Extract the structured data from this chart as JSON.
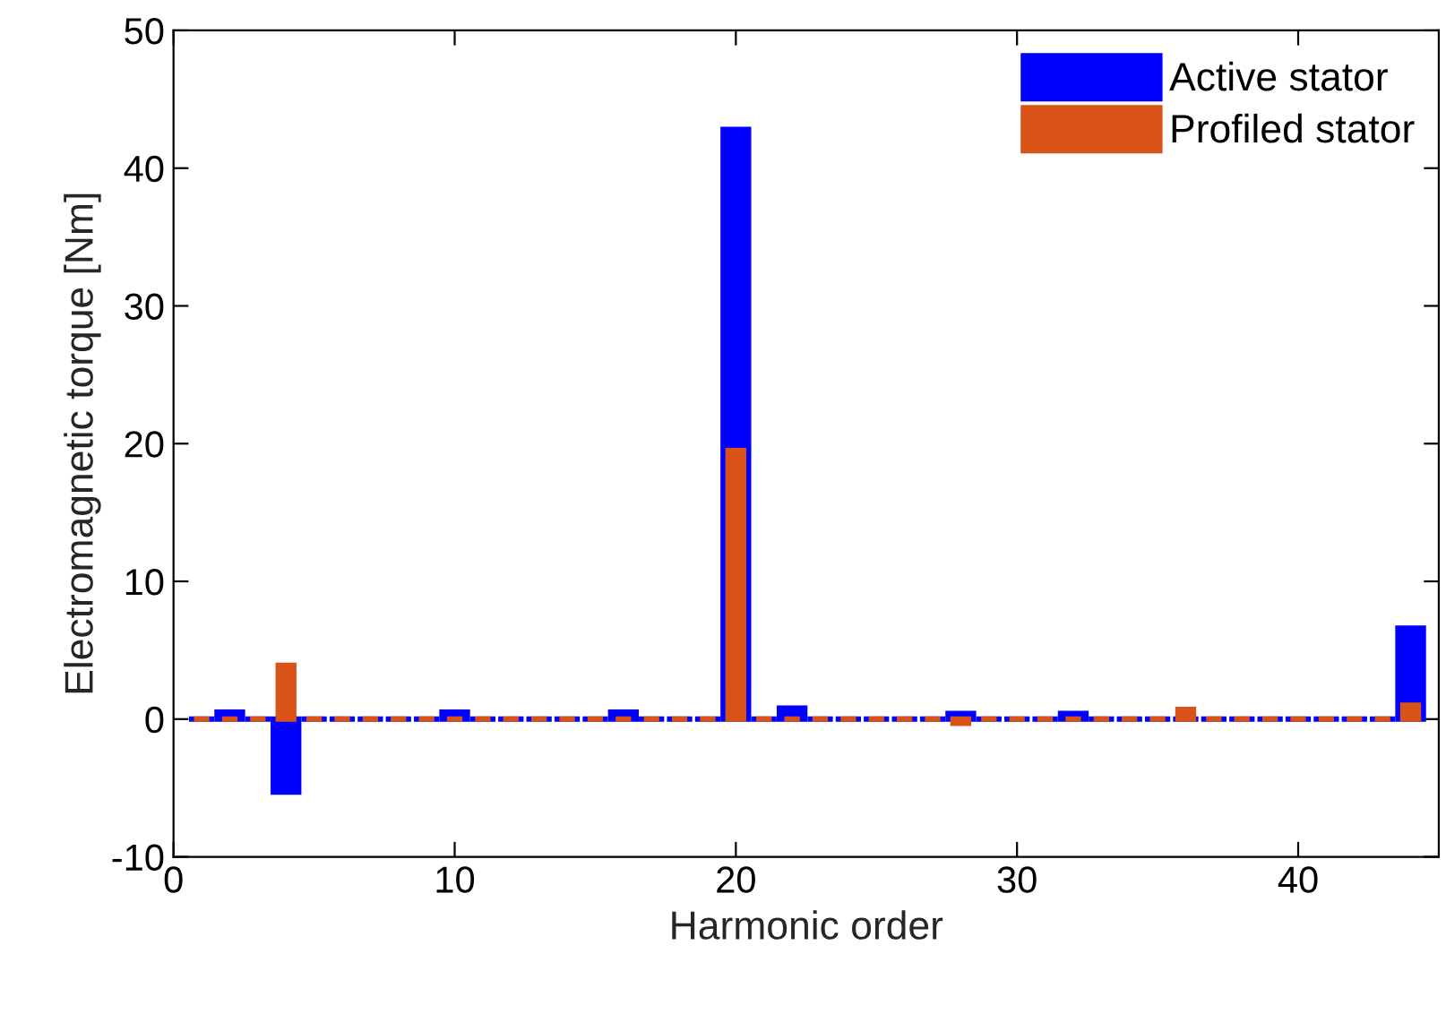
{
  "chart_data": {
    "type": "bar",
    "xlabel": "Harmonic order",
    "ylabel": "Electromagnetic torque [Nm]",
    "x": [
      1,
      2,
      3,
      4,
      5,
      6,
      7,
      8,
      9,
      10,
      11,
      12,
      13,
      14,
      15,
      16,
      17,
      18,
      19,
      20,
      21,
      22,
      23,
      24,
      25,
      26,
      27,
      28,
      29,
      30,
      31,
      32,
      33,
      34,
      35,
      36,
      37,
      38,
      39,
      40,
      41,
      42,
      43,
      44
    ],
    "series": [
      {
        "name": "Active stator",
        "color": "#0000ff",
        "values": [
          0,
          0.5,
          0,
          -5.3,
          0,
          0,
          0,
          0,
          0,
          0.5,
          0,
          0,
          0,
          0,
          0,
          0.5,
          0,
          0,
          0,
          42.8,
          0,
          0.8,
          0,
          0,
          0,
          0,
          0,
          0.4,
          0,
          0,
          0,
          0.4,
          0,
          0,
          0,
          0,
          0,
          0,
          0,
          0,
          0,
          0,
          0,
          6.6
        ]
      },
      {
        "name": "Profiled stator",
        "color": "#d95319",
        "values": [
          0,
          0,
          0,
          3.9,
          0,
          0,
          0,
          0,
          0,
          0,
          0,
          0,
          0,
          0,
          0,
          0,
          0,
          0,
          0,
          19.5,
          0,
          0,
          0,
          0,
          0,
          0,
          0,
          -0.3,
          0,
          0,
          0,
          0,
          0,
          0,
          0,
          0.7,
          0,
          0,
          0,
          0,
          0,
          0,
          0,
          1.0
        ]
      }
    ],
    "xlim": [
      0,
      45
    ],
    "xticks": [
      0,
      10,
      20,
      30,
      40
    ],
    "ylim": [
      -10,
      50
    ],
    "yticks": [
      -10,
      0,
      10,
      20,
      30,
      40,
      50
    ],
    "grid": false,
    "legend": "top right"
  }
}
